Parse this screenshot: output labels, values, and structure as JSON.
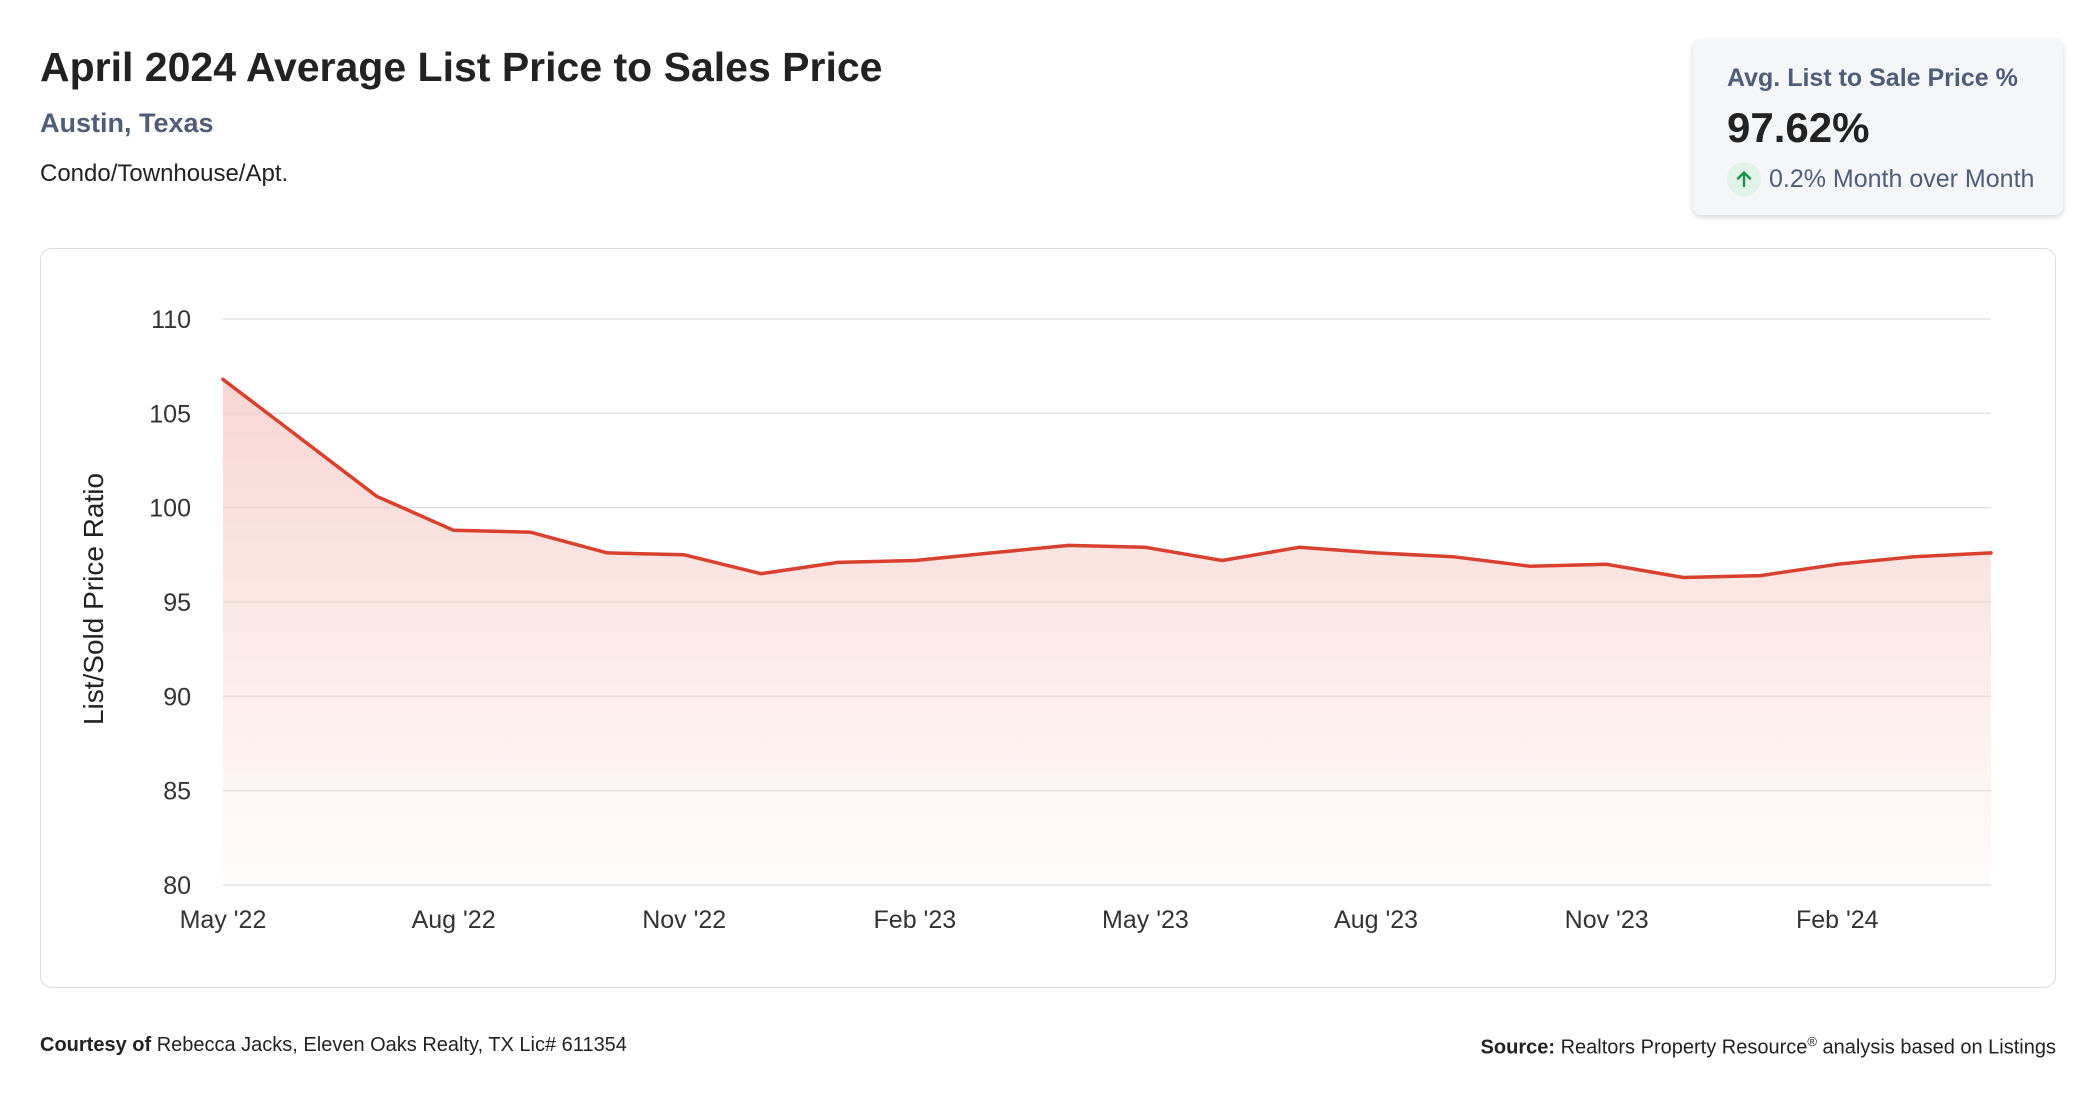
{
  "header": {
    "title": "April 2024 Average List Price to Sales Price",
    "location": "Austin, Texas",
    "property_type": "Condo/Townhouse/Apt."
  },
  "kpi": {
    "label": "Avg. List to Sale Price %",
    "value": "97.62%",
    "change": "0.2% Month over Month",
    "change_icon": "arrow-up-icon",
    "change_color": "#1e8e4e"
  },
  "footer": {
    "courtesy_label": "Courtesy of",
    "courtesy_text": "Rebecca Jacks, Eleven Oaks Realty, TX Lic# 611354",
    "source_label": "Source:",
    "source_text": "Realtors Property Resource",
    "source_mark": "®",
    "source_suffix": "analysis based on Listings"
  },
  "colors": {
    "line": "#d9412e",
    "fill_top": "#f6c9c3",
    "grid": "#e3e3e3",
    "accent_text": "#4f5d78"
  },
  "chart_data": {
    "type": "area",
    "ylabel": "List/Sold Price Ratio",
    "ylim": [
      80,
      110
    ],
    "yticks": [
      80,
      85,
      90,
      95,
      100,
      105,
      110
    ],
    "x": [
      "May '22",
      "Jun '22",
      "Jul '22",
      "Aug '22",
      "Sep '22",
      "Oct '22",
      "Nov '22",
      "Dec '22",
      "Jan '23",
      "Feb '23",
      "Mar '23",
      "Apr '23",
      "May '23",
      "Jun '23",
      "Jul '23",
      "Aug '23",
      "Sep '23",
      "Oct '23",
      "Nov '23",
      "Dec '23",
      "Jan '24",
      "Feb '24",
      "Mar '24",
      "Apr '24"
    ],
    "xtick_labels": [
      "May '22",
      "Aug '22",
      "Nov '22",
      "Feb '23",
      "May '23",
      "Aug '23",
      "Nov '23",
      "Feb '24"
    ],
    "series": [
      {
        "values": [
          106.8,
          103.7,
          100.6,
          98.8,
          98.7,
          97.6,
          97.5,
          96.5,
          97.1,
          97.2,
          97.6,
          98.0,
          97.9,
          97.2,
          97.9,
          97.6,
          97.4,
          96.9,
          97.0,
          96.3,
          96.4,
          97.0,
          97.4,
          97.6
        ]
      }
    ],
    "grid": true,
    "legend": "none"
  }
}
